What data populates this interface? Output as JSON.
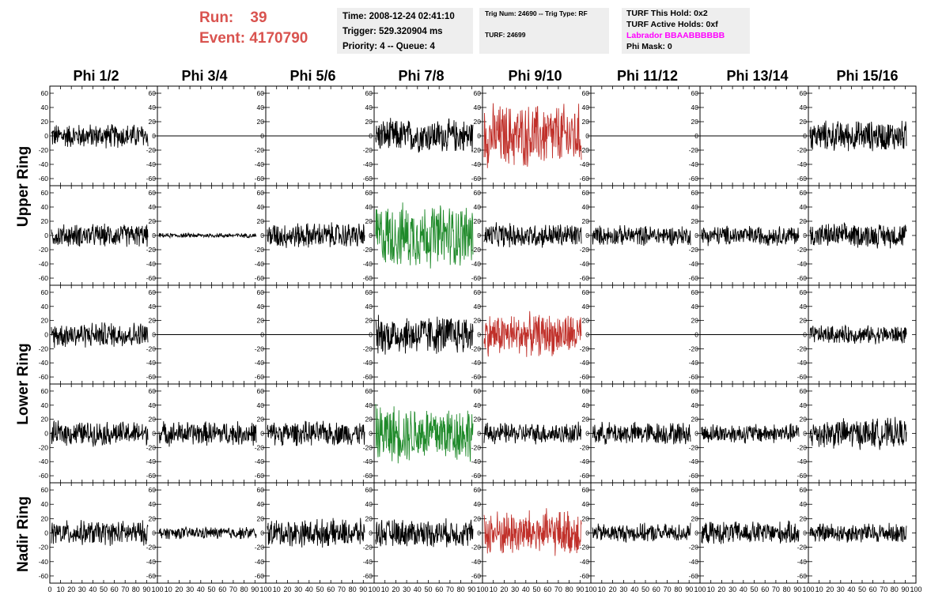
{
  "header": {
    "run_label": "Run:",
    "run_value": "39",
    "event_label": "Event:",
    "event_value": "4170790"
  },
  "info_box_1": {
    "time": "Time: 2008-12-24 02:41:10",
    "trigger": "Trigger: 529.320904 ms",
    "priority": "Priority: 4 -- Queue: 4"
  },
  "info_box_2": {
    "trig": "Trig Num: 24690 -- Trig Type: RF",
    "turf": "TURF: 24699"
  },
  "info_box_3": {
    "hold": "TURF This Hold: 0x2",
    "active": "TURF Active Holds: 0xf",
    "labrador": "Labrador BBAABBBBBB",
    "phimask": "Phi Mask: 0"
  },
  "columns": [
    "Phi 1/2",
    "Phi 3/4",
    "Phi 5/6",
    "Phi 7/8",
    "Phi 9/10",
    "Phi 11/12",
    "Phi 13/14",
    "Phi 15/16"
  ],
  "rings": [
    "Upper Ring",
    "Lower Ring",
    "Nadir Ring"
  ],
  "colors": {
    "normal": "#000000",
    "phi9_10": "#c0302a",
    "phi7_8": "#1f8a2a",
    "zero_line": "#000000"
  },
  "chart_data": {
    "type": "line",
    "description_rows": 5,
    "x_ticks": [
      "0",
      "10",
      "20",
      "30",
      "40",
      "50",
      "60",
      "70",
      "80",
      "90",
      "100"
    ],
    "x_range": [
      0,
      100
    ],
    "y_ticks": [
      "-60",
      "-40",
      "-20",
      "0",
      "20",
      "40",
      "60"
    ],
    "y_range": [
      -70,
      70
    ],
    "panels": [
      [
        {
          "amp": 16,
          "color": "normal",
          "gap": false
        },
        {
          "amp": 0,
          "color": "normal",
          "gap": false,
          "flat": true
        },
        {
          "amp": 0,
          "color": "normal",
          "gap": false,
          "flat": true
        },
        {
          "amp": 22,
          "color": "normal",
          "gap": false
        },
        {
          "amp": 42,
          "color": "phi9_10",
          "gap": false
        },
        {
          "amp": 0,
          "color": "normal",
          "gap": false,
          "flat": true
        },
        {
          "amp": 0,
          "color": "normal",
          "gap": false,
          "flat": true
        },
        {
          "amp": 20,
          "color": "normal",
          "gap": false
        }
      ],
      [
        {
          "amp": 15,
          "color": "normal",
          "gap": false
        },
        {
          "amp": 3,
          "color": "normal",
          "gap": false
        },
        {
          "amp": 17,
          "color": "normal",
          "gap": false
        },
        {
          "amp": 42,
          "color": "phi7_8",
          "gap": false
        },
        {
          "amp": 16,
          "color": "normal",
          "gap": false
        },
        {
          "amp": 13,
          "color": "normal",
          "gap": false
        },
        {
          "amp": 13,
          "color": "normal",
          "gap": false
        },
        {
          "amp": 16,
          "color": "normal",
          "gap": false
        }
      ],
      [
        {
          "amp": 17,
          "color": "normal",
          "gap": false
        },
        {
          "amp": 0,
          "color": "normal",
          "gap": false,
          "flat": true
        },
        {
          "amp": 0,
          "color": "normal",
          "gap": false,
          "flat": true
        },
        {
          "amp": 26,
          "color": "normal",
          "gap": false
        },
        {
          "amp": 28,
          "color": "phi9_10",
          "gap": false
        },
        {
          "amp": 0,
          "color": "normal",
          "gap": false,
          "flat": true
        },
        {
          "amp": 0,
          "color": "normal",
          "gap": false,
          "flat": true
        },
        {
          "amp": 12,
          "color": "normal",
          "gap": false
        }
      ],
      [
        {
          "amp": 16,
          "color": "normal",
          "gap": false
        },
        {
          "amp": 16,
          "color": "normal",
          "gap": false
        },
        {
          "amp": 16,
          "color": "normal",
          "gap": false
        },
        {
          "amp": 38,
          "color": "phi7_8",
          "gap": false
        },
        {
          "amp": 14,
          "color": "normal",
          "gap": false
        },
        {
          "amp": 15,
          "color": "normal",
          "gap": false
        },
        {
          "amp": 13,
          "color": "normal",
          "gap": false
        },
        {
          "amp": 20,
          "color": "normal",
          "gap": false
        }
      ],
      [
        {
          "amp": 16,
          "color": "normal",
          "gap": false
        },
        {
          "amp": 8,
          "color": "normal",
          "gap": false
        },
        {
          "amp": 18,
          "color": "normal",
          "gap": false
        },
        {
          "amp": 18,
          "color": "normal",
          "gap": false
        },
        {
          "amp": 30,
          "color": "phi9_10",
          "gap": false
        },
        {
          "amp": 12,
          "color": "normal",
          "gap": false
        },
        {
          "amp": 15,
          "color": "normal",
          "gap": false
        },
        {
          "amp": 13,
          "color": "normal",
          "gap": false
        }
      ]
    ]
  }
}
